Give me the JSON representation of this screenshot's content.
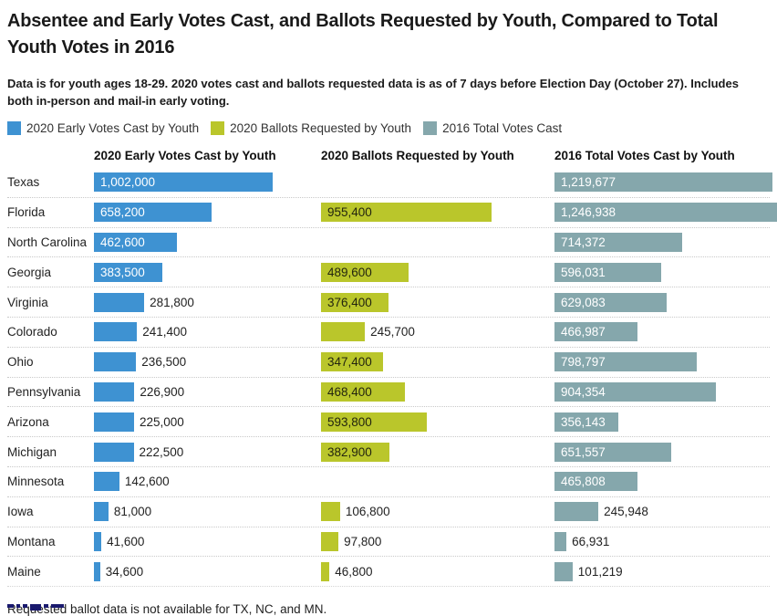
{
  "header": {
    "title": "Absentee and Early Votes Cast, and Ballots Requested by Youth, Compared to Total Youth Votes in 2016",
    "subtitle": "Data is for youth ages 18-29. 2020 votes cast and ballots requested data is as of 7 days before Election Day (October 27). Includes both in-person and mail-in early voting."
  },
  "footer": {
    "note": "Requested ballot data is not available for TX, NC, and MN."
  },
  "colors": {
    "early_blue": "#3E92D2",
    "ballots_yellow": "#BAC62B",
    "total_teal": "#85A7AC",
    "inside_label_on_yellow": "#23250f",
    "inside_label_on_blue_teal": "#ffffff"
  },
  "chart_data": {
    "type": "bar",
    "orientation": "horizontal",
    "title": "Absentee and Early Votes Cast, and Ballots Requested by Youth, Compared to Total Youth Votes in 2016",
    "axis_max": 1246938,
    "grid": "dotted row separators",
    "legend_position": "top",
    "legend": [
      {
        "label": "2020 Early Votes Cast by Youth",
        "color": "#3E92D2"
      },
      {
        "label": "2020 Ballots Requested by Youth",
        "color": "#BAC62B"
      },
      {
        "label": "2016 Total Votes Cast",
        "color": "#85A7AC"
      }
    ],
    "columns": [
      {
        "key": "early",
        "header": "2020 Early Votes Cast by Youth",
        "color": "#3E92D2",
        "inside_text": "#ffffff"
      },
      {
        "key": "ballots",
        "header": "2020 Ballots Requested by Youth",
        "color": "#BAC62B",
        "inside_text": "#23250f"
      },
      {
        "key": "total",
        "header": "2016 Total Votes Cast by Youth",
        "color": "#85A7AC",
        "inside_text": "#ffffff"
      }
    ],
    "rows": [
      {
        "state": "Texas",
        "early": 1002000,
        "early_label": "1,002,000",
        "ballots": null,
        "ballots_label": null,
        "total": 1219677,
        "total_label": "1,219,677"
      },
      {
        "state": "Florida",
        "early": 658200,
        "early_label": "658,200",
        "ballots": 955400,
        "ballots_label": "955,400",
        "total": 1246938,
        "total_label": "1,246,938"
      },
      {
        "state": "North Carolina",
        "early": 462600,
        "early_label": "462,600",
        "ballots": null,
        "ballots_label": null,
        "total": 714372,
        "total_label": "714,372"
      },
      {
        "state": "Georgia",
        "early": 383500,
        "early_label": "383,500",
        "ballots": 489600,
        "ballots_label": "489,600",
        "total": 596031,
        "total_label": "596,031"
      },
      {
        "state": "Virginia",
        "early": 281800,
        "early_label": "281,800",
        "ballots": 376400,
        "ballots_label": "376,400",
        "total": 629083,
        "total_label": "629,083"
      },
      {
        "state": "Colorado",
        "early": 241400,
        "early_label": "241,400",
        "ballots": 245700,
        "ballots_label": "245,700",
        "total": 466987,
        "total_label": "466,987"
      },
      {
        "state": "Ohio",
        "early": 236500,
        "early_label": "236,500",
        "ballots": 347400,
        "ballots_label": "347,400",
        "total": 798797,
        "total_label": "798,797"
      },
      {
        "state": "Pennsylvania",
        "early": 226900,
        "early_label": "226,900",
        "ballots": 468400,
        "ballots_label": "468,400",
        "total": 904354,
        "total_label": "904,354"
      },
      {
        "state": "Arizona",
        "early": 225000,
        "early_label": "225,000",
        "ballots": 593800,
        "ballots_label": "593,800",
        "total": 356143,
        "total_label": "356,143"
      },
      {
        "state": "Michigan",
        "early": 222500,
        "early_label": "222,500",
        "ballots": 382900,
        "ballots_label": "382,900",
        "total": 651557,
        "total_label": "651,557"
      },
      {
        "state": "Minnesota",
        "early": 142600,
        "early_label": "142,600",
        "ballots": null,
        "ballots_label": null,
        "total": 465808,
        "total_label": "465,808"
      },
      {
        "state": "Iowa",
        "early": 81000,
        "early_label": "81,000",
        "ballots": 106800,
        "ballots_label": "106,800",
        "total": 245948,
        "total_label": "245,948"
      },
      {
        "state": "Montana",
        "early": 41600,
        "early_label": "41,600",
        "ballots": 97800,
        "ballots_label": "97,800",
        "total": 66931,
        "total_label": "66,931"
      },
      {
        "state": "Maine",
        "early": 34600,
        "early_label": "34,600",
        "ballots": 46800,
        "ballots_label": "46,800",
        "total": 101219,
        "total_label": "101,219"
      }
    ]
  }
}
